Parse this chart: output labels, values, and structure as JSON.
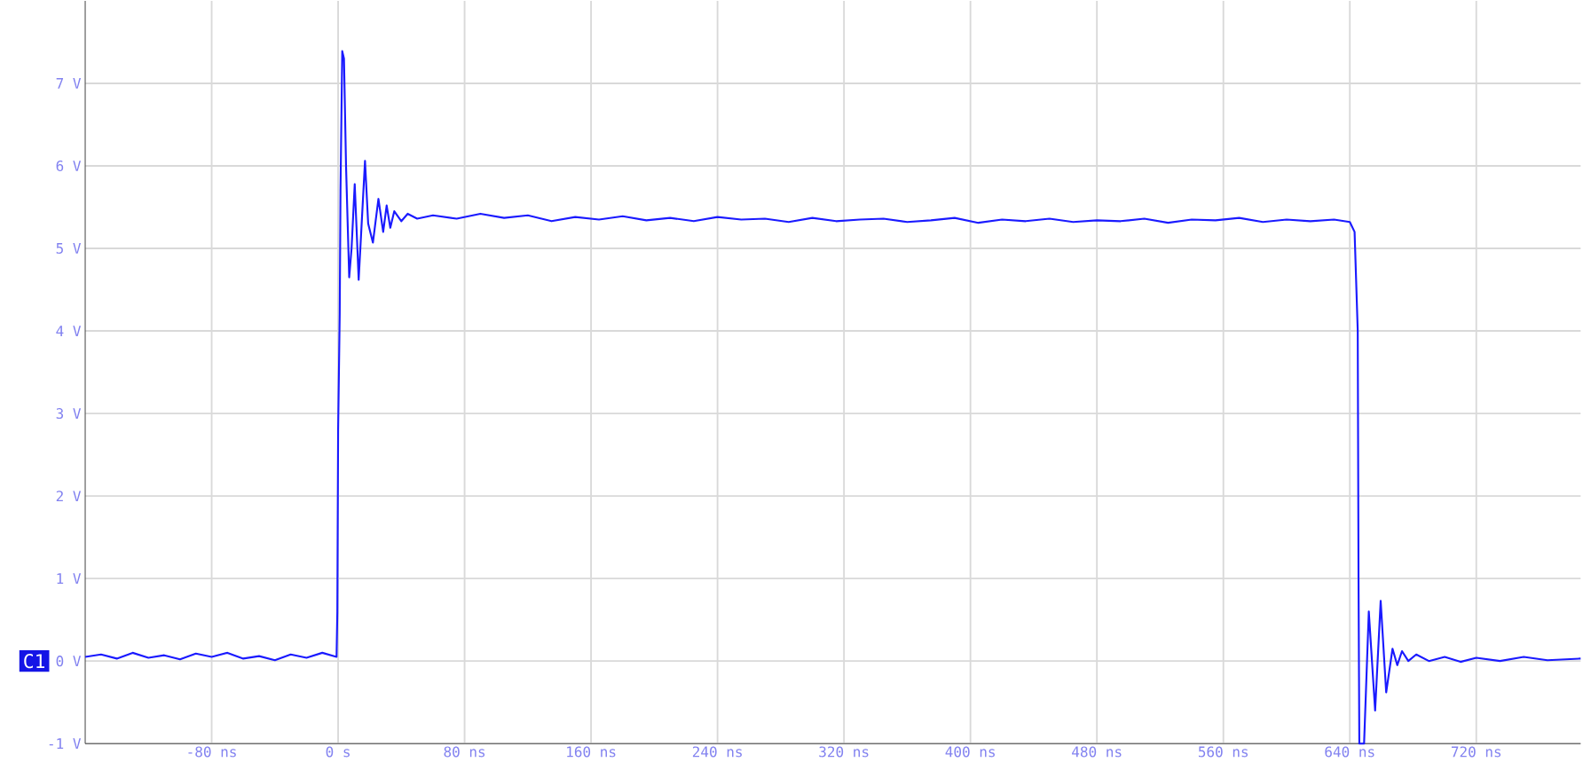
{
  "chart_data": {
    "type": "line",
    "x": [
      -160,
      -150,
      -140,
      -130,
      -120,
      -110,
      -100,
      -90,
      -80,
      -70,
      -60,
      -50,
      -40,
      -30,
      -20,
      -10,
      -1,
      -0.5,
      0,
      1,
      1.5,
      2.6,
      3.7,
      5,
      7,
      8.5,
      10.5,
      13,
      17,
      19,
      22,
      25.5,
      28.5,
      30.7,
      33,
      35.5,
      40,
      44,
      50,
      60,
      75,
      90,
      105,
      120,
      135,
      150,
      165,
      180,
      195,
      210,
      225,
      240,
      255,
      270,
      285,
      300,
      315,
      330,
      345,
      360,
      375,
      390,
      405,
      420,
      435,
      450,
      465,
      480,
      495,
      510,
      525,
      540,
      555,
      570,
      585,
      600,
      615,
      630,
      640,
      643,
      645,
      645.5,
      646,
      649,
      652,
      656,
      659.5,
      663,
      667,
      670,
      673,
      677,
      682,
      690,
      700,
      710,
      720,
      735,
      750,
      765,
      786
    ],
    "series": [
      {
        "color": "#1a1aff",
        "values": [
          0.05,
          0.08,
          0.03,
          0.1,
          0.04,
          0.07,
          0.02,
          0.09,
          0.05,
          0.1,
          0.03,
          0.06,
          0.01,
          0.08,
          0.04,
          0.1,
          0.05,
          0.6,
          2.8,
          4.2,
          5.7,
          7.39,
          7.3,
          6.0,
          4.65,
          5.0,
          5.78,
          4.62,
          6.06,
          5.3,
          5.07,
          5.6,
          5.2,
          5.52,
          5.25,
          5.45,
          5.33,
          5.42,
          5.36,
          5.4,
          5.36,
          5.42,
          5.37,
          5.4,
          5.33,
          5.38,
          5.35,
          5.39,
          5.34,
          5.37,
          5.33,
          5.38,
          5.35,
          5.36,
          5.32,
          5.37,
          5.33,
          5.35,
          5.36,
          5.32,
          5.34,
          5.37,
          5.31,
          5.35,
          5.33,
          5.36,
          5.32,
          5.34,
          5.33,
          5.36,
          5.31,
          5.35,
          5.34,
          5.37,
          5.32,
          5.35,
          5.33,
          5.35,
          5.32,
          5.2,
          4.0,
          1.0,
          -1,
          -1,
          0.6,
          -0.6,
          0.73,
          -0.38,
          0.15,
          -0.05,
          0.12,
          0.0,
          0.08,
          0.0,
          0.05,
          -0.01,
          0.04,
          0.0,
          0.05,
          0.01,
          0.03
        ]
      }
    ],
    "xlim": [
      -160,
      786
    ],
    "ylim": [
      -1,
      8
    ],
    "xticks": [
      {
        "value": -80,
        "label": "-80 ns"
      },
      {
        "value": 0,
        "label": "0 s"
      },
      {
        "value": 80,
        "label": "80 ns"
      },
      {
        "value": 160,
        "label": "160 ns"
      },
      {
        "value": 240,
        "label": "240 ns"
      },
      {
        "value": 320,
        "label": "320 ns"
      },
      {
        "value": 400,
        "label": "400 ns"
      },
      {
        "value": 480,
        "label": "480 ns"
      },
      {
        "value": 560,
        "label": "560 ns"
      },
      {
        "value": 640,
        "label": "640 ns"
      },
      {
        "value": 720,
        "label": "720 ns"
      }
    ],
    "yticks": [
      {
        "value": -1,
        "label": "-1 V"
      },
      {
        "value": 0,
        "label": "0 V"
      },
      {
        "value": 1,
        "label": "1 V"
      },
      {
        "value": 2,
        "label": "2 V"
      },
      {
        "value": 3,
        "label": "3 V"
      },
      {
        "value": 4,
        "label": "4 V"
      },
      {
        "value": 5,
        "label": "5 V"
      },
      {
        "value": 6,
        "label": "6 V"
      },
      {
        "value": 7,
        "label": "7 V"
      }
    ],
    "annotations": [
      {
        "text": "C1",
        "x": -160,
        "y": 0
      }
    ],
    "grid": true,
    "marker": "none",
    "line_style": "solid"
  }
}
